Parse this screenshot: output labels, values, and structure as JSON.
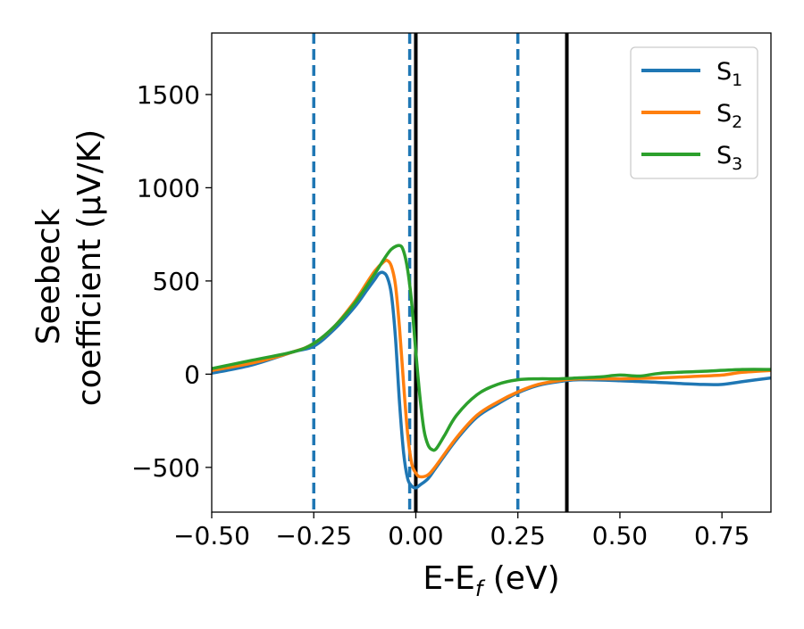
{
  "chart_data": {
    "type": "line",
    "xlabel": "E-E",
    "xlabel_sub": "f",
    "xlabel_unit": "(eV)",
    "ylabel_line1": "Seebeck",
    "ylabel_line2": "coefficient  (μV/K)",
    "xlim": [
      -0.5,
      0.87
    ],
    "ylim": [
      -740,
      1830
    ],
    "xticks": [
      -0.5,
      -0.25,
      0.0,
      0.25,
      0.5,
      0.75
    ],
    "xtick_labels": [
      "−0.50",
      "−0.25",
      "0.00",
      "0.25",
      "0.50",
      "0.75"
    ],
    "yticks": [
      -500,
      0,
      500,
      1000,
      1500
    ],
    "ytick_labels": [
      "−500",
      "0",
      "500",
      "1000",
      "1500"
    ],
    "grid": false,
    "legend_position": "top-right",
    "vlines": [
      {
        "x": -0.25,
        "style": "dashed",
        "color": "#1f77b4"
      },
      {
        "x": -0.015,
        "style": "dashed",
        "color": "#1f77b4"
      },
      {
        "x": 0.25,
        "style": "dashed",
        "color": "#1f77b4"
      },
      {
        "x": 0.0,
        "style": "solid",
        "color": "#000000"
      },
      {
        "x": 0.37,
        "style": "solid",
        "color": "#000000"
      }
    ],
    "series": [
      {
        "name": "S",
        "sub": "1",
        "color": "#1f77b4",
        "x": [
          -0.5,
          -0.4,
          -0.3,
          -0.25,
          -0.2,
          -0.15,
          -0.12,
          -0.1,
          -0.09,
          -0.08,
          -0.07,
          -0.06,
          -0.05,
          -0.04,
          -0.03,
          -0.02,
          -0.01,
          0.0,
          0.01,
          0.03,
          0.05,
          0.1,
          0.15,
          0.2,
          0.25,
          0.3,
          0.35,
          0.4,
          0.5,
          0.6,
          0.7,
          0.75,
          0.8,
          0.87
        ],
        "y": [
          5,
          50,
          120,
          150,
          240,
          360,
          450,
          510,
          540,
          545,
          520,
          430,
          200,
          -150,
          -420,
          -560,
          -600,
          -610,
          -595,
          -560,
          -500,
          -350,
          -230,
          -160,
          -100,
          -60,
          -40,
          -30,
          -35,
          -45,
          -55,
          -55,
          -40,
          -20
        ]
      },
      {
        "name": "S",
        "sub": "2",
        "color": "#ff7f0e",
        "x": [
          -0.5,
          -0.4,
          -0.3,
          -0.25,
          -0.2,
          -0.15,
          -0.12,
          -0.1,
          -0.08,
          -0.07,
          -0.06,
          -0.05,
          -0.04,
          -0.03,
          -0.02,
          -0.01,
          0.0,
          0.01,
          0.03,
          0.05,
          0.1,
          0.15,
          0.2,
          0.25,
          0.3,
          0.35,
          0.4,
          0.5,
          0.6,
          0.7,
          0.75,
          0.8,
          0.87
        ],
        "y": [
          20,
          60,
          120,
          165,
          255,
          390,
          490,
          555,
          600,
          610,
          580,
          480,
          250,
          -50,
          -320,
          -480,
          -530,
          -550,
          -540,
          -490,
          -340,
          -220,
          -150,
          -95,
          -55,
          -35,
          -25,
          -25,
          -20,
          -10,
          -5,
          10,
          20
        ]
      },
      {
        "name": "S",
        "sub": "3",
        "color": "#2ca02c",
        "x": [
          -0.5,
          -0.4,
          -0.3,
          -0.25,
          -0.2,
          -0.15,
          -0.1,
          -0.08,
          -0.06,
          -0.04,
          -0.03,
          -0.02,
          -0.01,
          0.0,
          0.01,
          0.02,
          0.03,
          0.04,
          0.05,
          0.07,
          0.1,
          0.15,
          0.2,
          0.25,
          0.3,
          0.35,
          0.4,
          0.45,
          0.5,
          0.55,
          0.6,
          0.7,
          0.8,
          0.87
        ],
        "y": [
          30,
          75,
          120,
          165,
          255,
          380,
          540,
          610,
          670,
          690,
          660,
          560,
          380,
          120,
          -120,
          -300,
          -380,
          -405,
          -400,
          -330,
          -220,
          -110,
          -55,
          -30,
          -25,
          -25,
          -20,
          -15,
          -5,
          -10,
          5,
          15,
          25,
          25
        ]
      }
    ]
  }
}
